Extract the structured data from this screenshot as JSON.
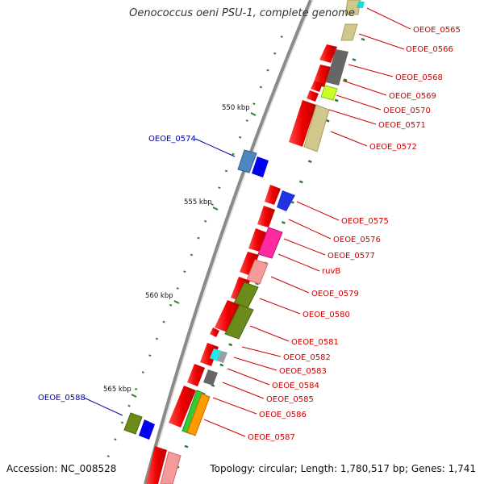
{
  "title": "Oenococcus oeni PSU-1, complete genome",
  "accession": "Accession: NC_008528",
  "topology": "Topology: circular; Length: 1,780,517 bp; Genes: 1,741",
  "colors": {
    "backbone": "#8a8a8a",
    "gene": "#ee0000",
    "label_right": "#cc0000",
    "label_left": "#0000aa",
    "tick": "#2e7d32"
  },
  "kbp_labels": [
    "550 kbp",
    "555 kbp",
    "560 kbp",
    "565 kbp"
  ],
  "genes_right": [
    "OEOE_0565",
    "OEOE_0566",
    "OEOE_0568",
    "OEOE_0569",
    "OEOE_0570",
    "OEOE_0571",
    "OEOE_0572",
    "OEOE_0575",
    "OEOE_0576",
    "OEOE_0577",
    "ruvB",
    "OEOE_0579",
    "OEOE_0580",
    "OEOE_0581",
    "OEOE_0582",
    "OEOE_0583",
    "OEOE_0584",
    "OEOE_0585",
    "OEOE_0586",
    "OEOE_0587"
  ],
  "genes_left": [
    "OEOE_0574",
    "OEOE_0588"
  ]
}
